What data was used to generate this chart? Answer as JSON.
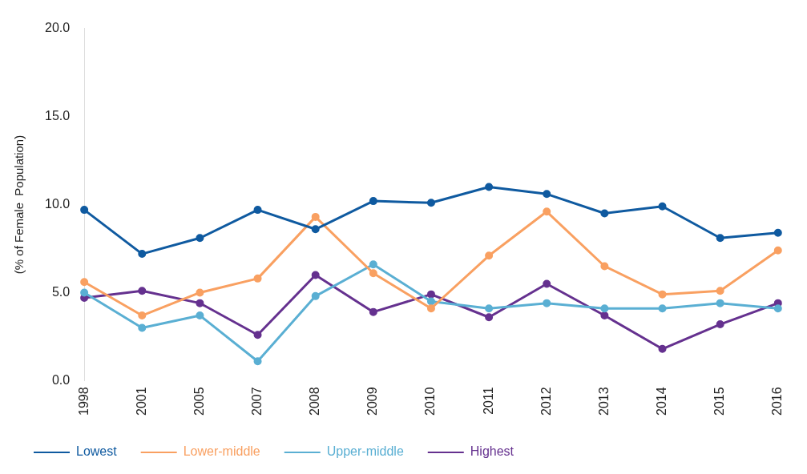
{
  "chart_data": {
    "type": "line",
    "ylabel": "(% of Female  Population)",
    "categories": [
      "1998",
      "2001",
      "2005",
      "2007",
      "2008",
      "2009",
      "2010",
      "2011",
      "2012",
      "2013",
      "2014",
      "2015",
      "2016"
    ],
    "series": [
      {
        "name": "Lowest",
        "color": "#0f5aa0",
        "values": [
          9.7,
          7.2,
          8.1,
          9.7,
          8.6,
          10.2,
          10.1,
          11.0,
          10.6,
          9.5,
          9.9,
          8.1,
          8.4
        ]
      },
      {
        "name": "Lower-middle",
        "color": "#f9a061",
        "values": [
          5.6,
          3.7,
          5.0,
          5.8,
          9.3,
          6.1,
          4.1,
          7.1,
          9.6,
          6.5,
          4.9,
          5.1,
          7.4
        ]
      },
      {
        "name": "Upper-middle",
        "color": "#5aafd3",
        "values": [
          5.0,
          3.0,
          3.7,
          1.1,
          4.8,
          6.6,
          4.5,
          4.1,
          4.4,
          4.1,
          4.1,
          4.4,
          4.1
        ]
      },
      {
        "name": "Highest",
        "color": "#65318f",
        "values": [
          4.7,
          5.1,
          4.4,
          2.6,
          6.0,
          3.9,
          4.9,
          3.6,
          5.5,
          3.7,
          1.8,
          3.2,
          4.4
        ]
      }
    ],
    "ylim": [
      0,
      20
    ],
    "yticks": [
      {
        "value": 0,
        "label": "0.0"
      },
      {
        "value": 5,
        "label": "5.0"
      },
      {
        "value": 10,
        "label": "10.0"
      },
      {
        "value": 15,
        "label": "15.0"
      },
      {
        "value": 20,
        "label": "20.0"
      }
    ],
    "grid": false,
    "legend": "bottom",
    "marker": "circle",
    "line_style": "solid"
  }
}
